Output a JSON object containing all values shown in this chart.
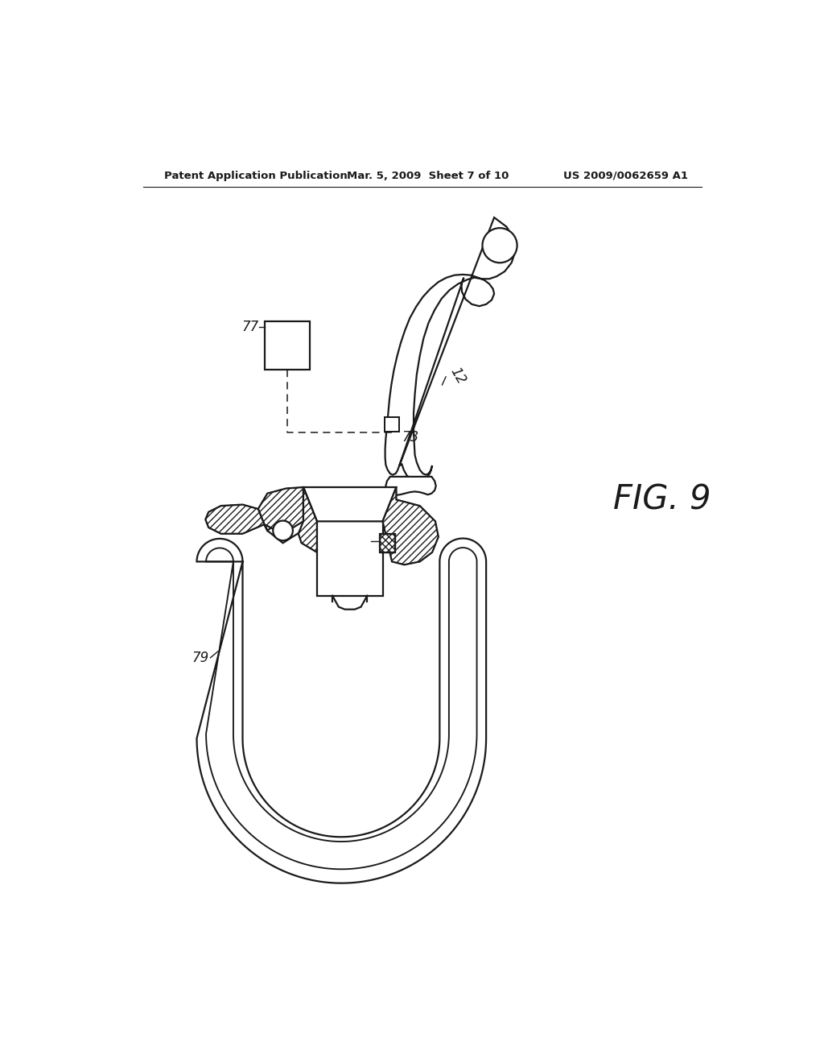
{
  "background_color": "#ffffff",
  "line_color": "#1a1a1a",
  "line_width": 1.6,
  "header_left": "Patent Application Publication",
  "header_mid": "Mar. 5, 2009  Sheet 7 of 10",
  "header_right": "US 2009/0062659 A1",
  "fig_label": "FIG. 9"
}
